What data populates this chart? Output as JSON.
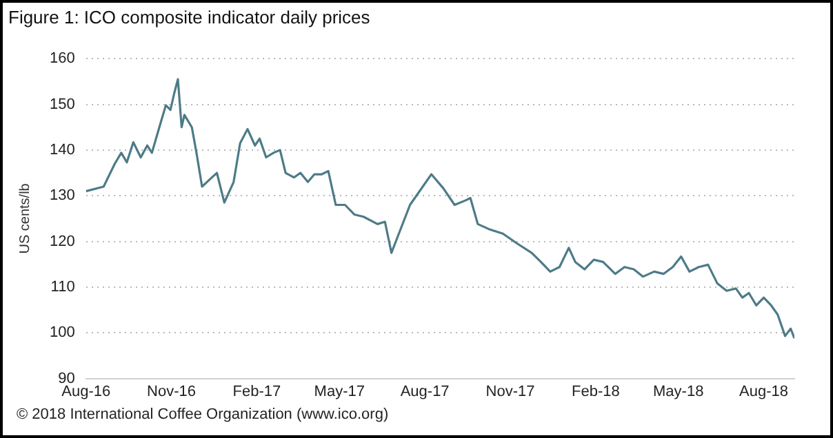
{
  "chart_data": {
    "type": "line",
    "title": "Figure 1: ICO composite indicator daily prices",
    "ylabel": "US cents/lb",
    "annotations": [
      "© 2018 International Coffee Organization (www.ico.org)"
    ],
    "x": [
      "2016-08-01",
      "2016-08-20",
      "2016-09-01",
      "2016-09-08",
      "2016-09-14",
      "2016-09-21",
      "2016-09-29",
      "2016-10-06",
      "2016-10-11",
      "2016-10-19",
      "2016-10-26",
      "2016-10-31",
      "2016-11-04",
      "2016-11-08",
      "2016-11-12",
      "2016-11-15",
      "2016-11-23",
      "2016-11-28",
      "2016-12-04",
      "2016-12-13",
      "2016-12-20",
      "2016-12-28",
      "2017-01-07",
      "2017-01-14",
      "2017-01-22",
      "2017-01-30",
      "2017-02-04",
      "2017-02-11",
      "2017-02-19",
      "2017-02-26",
      "2017-03-04",
      "2017-03-13",
      "2017-03-20",
      "2017-03-28",
      "2017-04-04",
      "2017-04-12",
      "2017-04-19",
      "2017-04-27",
      "2017-05-07",
      "2017-05-17",
      "2017-05-27",
      "2017-06-11",
      "2017-06-19",
      "2017-06-26",
      "2017-07-04",
      "2017-07-16",
      "2017-08-08",
      "2017-08-21",
      "2017-09-02",
      "2017-09-14",
      "2017-09-19",
      "2017-09-27",
      "2017-10-09",
      "2017-10-24",
      "2017-11-08",
      "2017-11-24",
      "2017-12-04",
      "2017-12-14",
      "2017-12-24",
      "2018-01-03",
      "2018-01-10",
      "2018-01-20",
      "2018-01-30",
      "2018-02-09",
      "2018-02-22",
      "2018-03-04",
      "2018-03-14",
      "2018-03-24",
      "2018-04-05",
      "2018-04-15",
      "2018-04-25",
      "2018-05-04",
      "2018-05-13",
      "2018-05-23",
      "2018-06-02",
      "2018-06-12",
      "2018-06-22",
      "2018-07-02",
      "2018-07-09",
      "2018-07-16",
      "2018-07-24",
      "2018-08-01",
      "2018-08-09",
      "2018-08-16",
      "2018-08-24",
      "2018-08-30",
      "2018-09-03"
    ],
    "series": [
      {
        "color": "#4d7b87",
        "values": [
          131,
          132,
          137,
          139.4,
          137.3,
          141.7,
          138.4,
          141,
          139.4,
          145,
          149.8,
          148.8,
          152.4,
          155.5,
          145,
          147.7,
          145,
          139.4,
          132,
          133.7,
          135,
          128.5,
          133,
          141.5,
          144.6,
          141,
          142.5,
          138.4,
          139.4,
          140,
          135,
          134,
          135,
          133,
          134.7,
          134.7,
          135.4,
          128,
          128,
          125.9,
          125.4,
          123.8,
          124.3,
          117.5,
          121.7,
          128,
          134.7,
          131.6,
          128,
          129,
          129.5,
          123.8,
          122.7,
          121.7,
          119.6,
          117.5,
          115.5,
          113.4,
          114.4,
          118.6,
          115.5,
          113.9,
          116,
          115.5,
          112.9,
          114.4,
          113.9,
          112.3,
          113.4,
          112.9,
          114.4,
          116.7,
          113.4,
          114.4,
          114.9,
          110.8,
          109.2,
          109.7,
          107.7,
          108.7,
          106,
          107.7,
          106,
          104,
          99.3,
          100.9,
          98.8
        ]
      }
    ],
    "xlim": [
      "2016-08-01",
      "2018-09-03"
    ],
    "xticks": [
      {
        "value": "2016-08-01",
        "label": "Aug-16"
      },
      {
        "value": "2016-11-01",
        "label": "Nov-16"
      },
      {
        "value": "2017-02-01",
        "label": "Feb-17"
      },
      {
        "value": "2017-05-01",
        "label": "May-17"
      },
      {
        "value": "2017-08-01",
        "label": "Aug-17"
      },
      {
        "value": "2017-11-01",
        "label": "Nov-17"
      },
      {
        "value": "2018-02-01",
        "label": "Feb-18"
      },
      {
        "value": "2018-05-01",
        "label": "May-18"
      },
      {
        "value": "2018-08-01",
        "label": "Aug-18"
      }
    ],
    "ylim": [
      90,
      160
    ],
    "yticks": [
      90,
      100,
      110,
      120,
      130,
      140,
      150,
      160
    ],
    "grid": "y",
    "legend": false,
    "marker": "none",
    "line_style": "solid"
  }
}
